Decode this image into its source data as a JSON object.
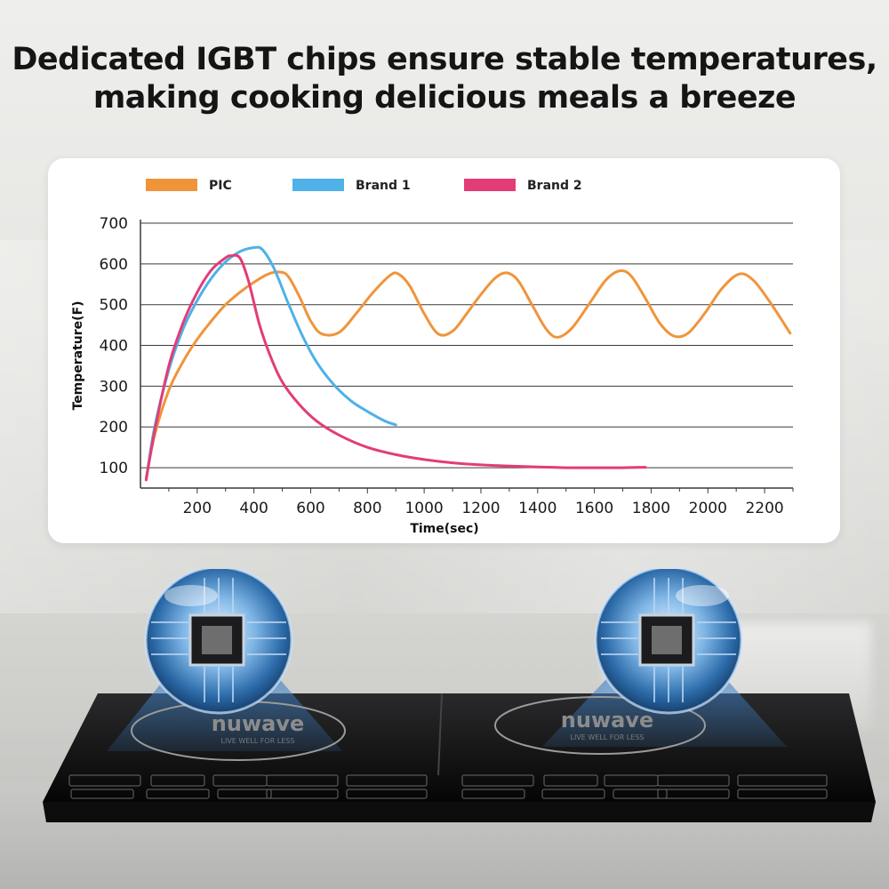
{
  "headline": {
    "line1": "Dedicated IGBT chips ensure stable temperatures,",
    "line2": "making cooking delicious meals a breeze"
  },
  "product": {
    "brand_left": "nuwave",
    "brand_right": "nuwave",
    "tagline_left": "LIVE WELL FOR LESS",
    "tagline_right": "LIVE WELL FOR LESS"
  },
  "colors": {
    "pic": "#f0943a",
    "brand1": "#4eb1e8",
    "brand2": "#e33c78"
  },
  "chart_data": {
    "type": "line",
    "title": "",
    "xlabel": "Time(sec)",
    "ylabel": "Temperature(F)",
    "xlim": [
      0,
      2300
    ],
    "ylim": [
      50,
      700
    ],
    "xticks": [
      200,
      400,
      600,
      800,
      1000,
      1200,
      1400,
      1600,
      1800,
      2000,
      2200
    ],
    "yticks": [
      100,
      200,
      300,
      400,
      500,
      600,
      700
    ],
    "grid": "horizontal",
    "legend_position": "top",
    "series": [
      {
        "name": "PIC",
        "color": "#f0943a",
        "points": [
          [
            20,
            75
          ],
          [
            50,
            180
          ],
          [
            100,
            290
          ],
          [
            150,
            360
          ],
          [
            200,
            415
          ],
          [
            250,
            460
          ],
          [
            300,
            500
          ],
          [
            350,
            530
          ],
          [
            400,
            555
          ],
          [
            450,
            575
          ],
          [
            490,
            580
          ],
          [
            520,
            570
          ],
          [
            560,
            520
          ],
          [
            600,
            460
          ],
          [
            640,
            428
          ],
          [
            700,
            432
          ],
          [
            760,
            478
          ],
          [
            820,
            530
          ],
          [
            880,
            572
          ],
          [
            910,
            575
          ],
          [
            950,
            545
          ],
          [
            1000,
            478
          ],
          [
            1050,
            428
          ],
          [
            1100,
            435
          ],
          [
            1150,
            478
          ],
          [
            1200,
            525
          ],
          [
            1250,
            565
          ],
          [
            1290,
            578
          ],
          [
            1330,
            560
          ],
          [
            1380,
            500
          ],
          [
            1430,
            440
          ],
          [
            1470,
            420
          ],
          [
            1520,
            442
          ],
          [
            1580,
            500
          ],
          [
            1640,
            560
          ],
          [
            1690,
            583
          ],
          [
            1730,
            570
          ],
          [
            1780,
            515
          ],
          [
            1830,
            455
          ],
          [
            1880,
            423
          ],
          [
            1930,
            430
          ],
          [
            1990,
            480
          ],
          [
            2050,
            540
          ],
          [
            2110,
            575
          ],
          [
            2160,
            560
          ],
          [
            2220,
            505
          ],
          [
            2290,
            430
          ]
        ]
      },
      {
        "name": "Brand 1",
        "color": "#4eb1e8",
        "points": [
          [
            20,
            70
          ],
          [
            50,
            200
          ],
          [
            100,
            340
          ],
          [
            150,
            440
          ],
          [
            200,
            510
          ],
          [
            250,
            565
          ],
          [
            300,
            605
          ],
          [
            350,
            630
          ],
          [
            400,
            640
          ],
          [
            430,
            635
          ],
          [
            470,
            590
          ],
          [
            520,
            505
          ],
          [
            570,
            425
          ],
          [
            620,
            360
          ],
          [
            680,
            305
          ],
          [
            740,
            265
          ],
          [
            800,
            238
          ],
          [
            860,
            215
          ],
          [
            900,
            205
          ]
        ]
      },
      {
        "name": "Brand 2",
        "color": "#e33c78",
        "points": [
          [
            20,
            70
          ],
          [
            50,
            190
          ],
          [
            100,
            350
          ],
          [
            150,
            455
          ],
          [
            200,
            530
          ],
          [
            250,
            585
          ],
          [
            300,
            615
          ],
          [
            320,
            620
          ],
          [
            350,
            615
          ],
          [
            380,
            560
          ],
          [
            420,
            450
          ],
          [
            460,
            370
          ],
          [
            500,
            310
          ],
          [
            560,
            255
          ],
          [
            620,
            215
          ],
          [
            700,
            180
          ],
          [
            800,
            150
          ],
          [
            900,
            132
          ],
          [
            1000,
            120
          ],
          [
            1100,
            112
          ],
          [
            1200,
            107
          ],
          [
            1300,
            104
          ],
          [
            1400,
            102
          ],
          [
            1500,
            100
          ],
          [
            1600,
            100
          ],
          [
            1700,
            100
          ],
          [
            1780,
            101
          ]
        ]
      }
    ]
  }
}
